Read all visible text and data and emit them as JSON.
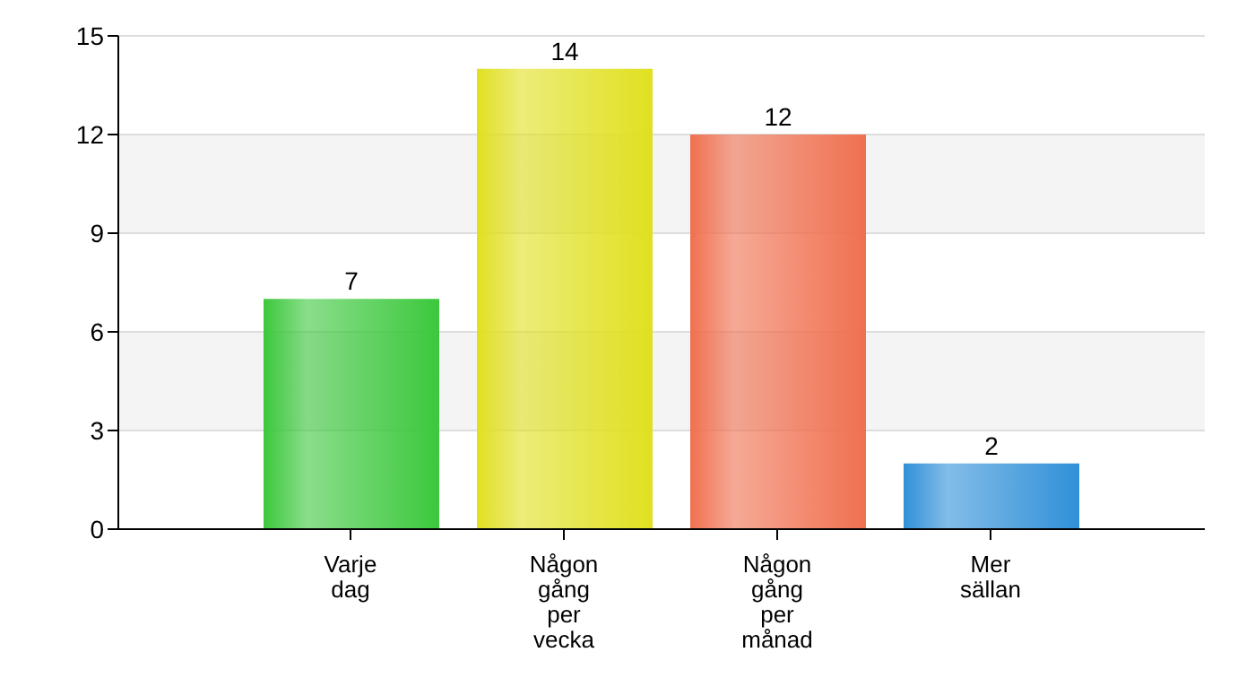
{
  "chart_data": {
    "type": "bar",
    "categories": [
      "Varje dag",
      "Någon gång per vecka",
      "Någon gång per månad",
      "Mer sällan"
    ],
    "values": [
      7,
      14,
      12,
      2
    ],
    "colors": [
      "#3cc83c",
      "#e0e020",
      "#f07050",
      "#3090d8"
    ],
    "ylim": [
      0,
      15
    ],
    "yticks": [
      0,
      3,
      6,
      9,
      12,
      15
    ],
    "grid": "y",
    "data_labels": true
  }
}
